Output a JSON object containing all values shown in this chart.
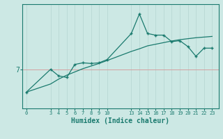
{
  "background_color": "#cce8e4",
  "line_color": "#1a7a6e",
  "grid_color": "#b8d8d4",
  "hline_color": "#d4a0a0",
  "xlabel": "Humidex (Indice chaleur)",
  "xlabel_fontsize": 7,
  "xtick_positions": [
    0,
    3,
    4,
    5,
    6,
    7,
    8,
    9,
    10,
    13,
    14,
    15,
    16,
    17,
    18,
    19,
    20,
    21,
    22,
    23
  ],
  "xtick_labels": [
    "0",
    "3",
    "4",
    "5",
    "6",
    "7",
    "8",
    "9",
    "10",
    "13",
    "14",
    "15",
    "16",
    "17",
    "18",
    "19",
    "20",
    "21",
    "22",
    "23"
  ],
  "xlim": [
    -0.5,
    23.8
  ],
  "ylim_min": 5.8,
  "ylim_max": 9.0,
  "line1_x": [
    0,
    3,
    4,
    5,
    6,
    7,
    8,
    9,
    10,
    13,
    14,
    15,
    16,
    17,
    18,
    19,
    20,
    21,
    22,
    23
  ],
  "line1_y": [
    6.3,
    7.0,
    6.8,
    6.75,
    7.15,
    7.2,
    7.18,
    7.2,
    7.3,
    8.1,
    8.7,
    8.1,
    8.05,
    8.05,
    7.85,
    7.88,
    7.7,
    7.4,
    7.65,
    7.65
  ],
  "line2_x": [
    0,
    3,
    4,
    5,
    6,
    7,
    8,
    9,
    10,
    13,
    14,
    15,
    16,
    17,
    18,
    19,
    20,
    21,
    22,
    23
  ],
  "line2_y": [
    6.3,
    6.55,
    6.7,
    6.82,
    6.92,
    7.02,
    7.1,
    7.18,
    7.27,
    7.55,
    7.63,
    7.72,
    7.77,
    7.82,
    7.87,
    7.91,
    7.94,
    7.97,
    7.99,
    8.01
  ],
  "figsize": [
    3.2,
    2.0
  ],
  "dpi": 100
}
